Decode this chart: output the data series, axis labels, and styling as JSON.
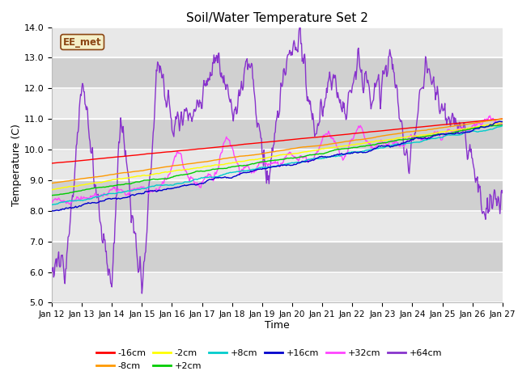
{
  "title": "Soil/Water Temperature Set 2",
  "xlabel": "Time",
  "ylabel": "Temperature (C)",
  "ylim": [
    5.0,
    14.0
  ],
  "yticks": [
    5.0,
    6.0,
    7.0,
    8.0,
    9.0,
    10.0,
    11.0,
    12.0,
    13.0,
    14.0
  ],
  "date_labels": [
    "Jan 12",
    "Jan 13",
    "Jan 14",
    "Jan 15",
    "Jan 16",
    "Jan 17",
    "Jan 18",
    "Jan 19",
    "Jan 20",
    "Jan 21",
    "Jan 22",
    "Jan 23",
    "Jan 24",
    "Jan 25",
    "Jan 26",
    "Jan 27"
  ],
  "n_points": 721,
  "series": {
    "-16cm": {
      "color": "#ff0000",
      "lw": 1.0
    },
    "-8cm": {
      "color": "#ff9900",
      "lw": 1.0
    },
    "-2cm": {
      "color": "#ffff00",
      "lw": 1.0
    },
    "+2cm": {
      "color": "#00cc00",
      "lw": 1.0
    },
    "+8cm": {
      "color": "#00cccc",
      "lw": 1.0
    },
    "+16cm": {
      "color": "#0000cc",
      "lw": 1.0
    },
    "+32cm": {
      "color": "#ff44ff",
      "lw": 1.0
    },
    "+64cm": {
      "color": "#8833cc",
      "lw": 1.0
    }
  },
  "watermark_text": "EE_met",
  "watermark_color": "#8B4513",
  "watermark_bg": "#f5f0c8",
  "plot_bg": "#e8e8e8",
  "fig_bg": "#ffffff",
  "band_color": "#d8d8d8",
  "legend_row1": [
    "-16cm",
    "-8cm",
    "-2cm",
    "+2cm",
    "+8cm",
    "+16cm"
  ],
  "legend_row2": [
    "+32cm",
    "+64cm"
  ]
}
